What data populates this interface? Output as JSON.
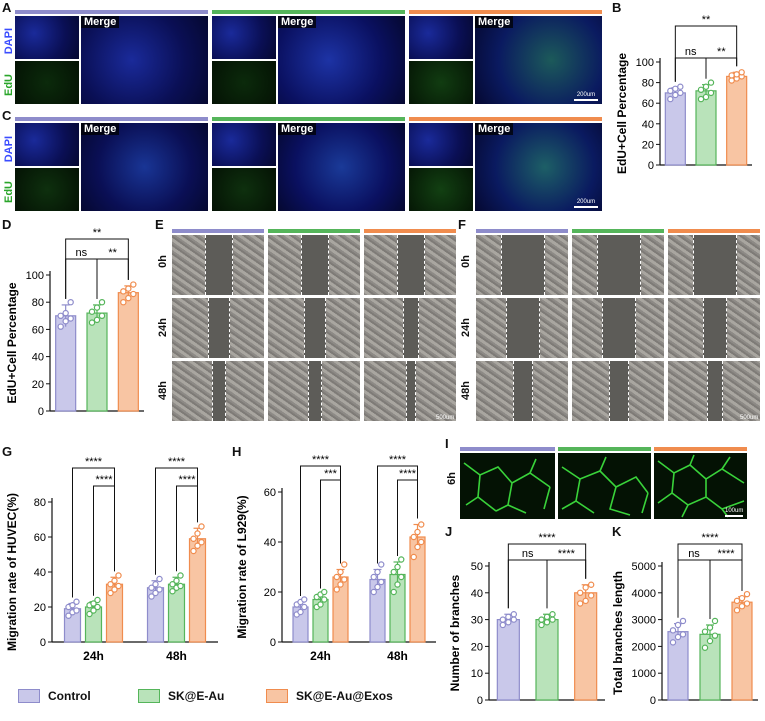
{
  "colors": {
    "control": "#8e8ccb",
    "skeau": "#55b55a",
    "exos": "#f08c4e",
    "controlFill": "#c9c8ea",
    "skeauFill": "#b9e3ba",
    "exosFill": "#f8c5a3"
  },
  "panels": {
    "A": "A",
    "B": "B",
    "C": "C",
    "D": "D",
    "E": "E",
    "F": "F",
    "G": "G",
    "H": "H",
    "I": "I",
    "J": "J",
    "K": "K"
  },
  "micro": {
    "merge": "Merge",
    "dapi": "DAPI",
    "edu": "EdU",
    "scale200": "200um",
    "scale500": "500um",
    "scale100": "100um",
    "t0": "0h",
    "t24": "24h",
    "t48": "48h",
    "t6": "6h"
  },
  "legend": [
    {
      "label": "Control"
    },
    {
      "label": "SK@E-Au"
    },
    {
      "label": "SK@E-Au@Exos"
    }
  ],
  "chart_data": [
    {
      "id": "B",
      "type": "bar",
      "ylabel": "EdU+Cell Percentage",
      "ylim": [
        0,
        100
      ],
      "yticks": [
        "0",
        "20",
        "40",
        "60",
        "80",
        "100"
      ],
      "categories": [
        "Control",
        "SK@E-Au",
        "SK@E-Au@Exos"
      ],
      "values": [
        70,
        72,
        86
      ],
      "errors": [
        5,
        6,
        4
      ],
      "points": [
        [
          64,
          68,
          70,
          72,
          74,
          76
        ],
        [
          64,
          66,
          70,
          73,
          76,
          80
        ],
        [
          82,
          84,
          86,
          87,
          88,
          90
        ]
      ],
      "significance": [
        {
          "label": "ns",
          "from": 0,
          "to": 1
        },
        {
          "label": "**",
          "from": 1,
          "to": 2
        },
        {
          "label": "**",
          "from": 0,
          "to": 2
        }
      ]
    },
    {
      "id": "D",
      "type": "bar",
      "ylabel": "EdU+Cell Percentage",
      "ylim": [
        0,
        100
      ],
      "yticks": [
        "0",
        "20",
        "40",
        "60",
        "80",
        "100"
      ],
      "categories": [
        "Control",
        "SK@E-Au",
        "SK@E-Au@Exos"
      ],
      "values": [
        70,
        72,
        87
      ],
      "errors": [
        8,
        6,
        5
      ],
      "points": [
        [
          62,
          66,
          68,
          70,
          72,
          80
        ],
        [
          65,
          67,
          70,
          73,
          76,
          80
        ],
        [
          80,
          83,
          86,
          88,
          90,
          93
        ]
      ],
      "significance": [
        {
          "label": "ns",
          "from": 0,
          "to": 1
        },
        {
          "label": "**",
          "from": 1,
          "to": 2
        },
        {
          "label": "**",
          "from": 0,
          "to": 2
        }
      ]
    },
    {
      "id": "G",
      "type": "bar",
      "ylabel": "Migration rate of HUVEC(%)",
      "ylim": [
        0,
        80
      ],
      "yticks": [
        "0",
        "20",
        "40",
        "60",
        "80"
      ],
      "categories": [
        "24h",
        "48h"
      ],
      "series": [
        {
          "name": "Control",
          "values": [
            19,
            31
          ],
          "errors": [
            3,
            4
          ],
          "points": [
            [
              15,
              17,
              18,
              20,
              21,
              23
            ],
            [
              26,
              28,
              30,
              31,
              33,
              36
            ]
          ]
        },
        {
          "name": "SK@E-Au",
          "values": [
            20,
            33
          ],
          "errors": [
            3,
            4
          ],
          "points": [
            [
              16,
              18,
              20,
              21,
              22,
              24
            ],
            [
              29,
              31,
              32,
              33,
              35,
              38
            ]
          ]
        },
        {
          "name": "SK@E-Au@Exos",
          "values": [
            33,
            59
          ],
          "errors": [
            4,
            6
          ],
          "points": [
            [
              28,
              30,
              32,
              33,
              35,
              38
            ],
            [
              52,
              55,
              57,
              59,
              62,
              66
            ]
          ]
        }
      ],
      "significance": [
        {
          "label": "****",
          "group": 0,
          "from": 1,
          "to": 2
        },
        {
          "label": "****",
          "group": 0,
          "from": 0,
          "to": 2
        },
        {
          "label": "****",
          "group": 1,
          "from": 1,
          "to": 2
        },
        {
          "label": "****",
          "group": 1,
          "from": 0,
          "to": 2
        }
      ]
    },
    {
      "id": "H",
      "type": "bar",
      "ylabel": "Migration rate of L929(%)",
      "ylim": [
        0,
        60
      ],
      "yticks": [
        "0",
        "20",
        "40",
        "60"
      ],
      "categories": [
        "24h",
        "48h"
      ],
      "series": [
        {
          "name": "Control",
          "values": [
            14,
            25
          ],
          "errors": [
            2,
            4
          ],
          "points": [
            [
              11,
              12,
              14,
              15,
              16,
              17
            ],
            [
              20,
              22,
              24,
              26,
              28,
              31
            ]
          ]
        },
        {
          "name": "SK@E-Au",
          "values": [
            17,
            27
          ],
          "errors": [
            2,
            5
          ],
          "points": [
            [
              14,
              15,
              17,
              18,
              19,
              20
            ],
            [
              20,
              23,
              26,
              28,
              30,
              33
            ]
          ]
        },
        {
          "name": "SK@E-Au@Exos",
          "values": [
            26,
            42
          ],
          "errors": [
            3,
            5
          ],
          "points": [
            [
              21,
              23,
              25,
              26,
              28,
              31
            ],
            [
              34,
              38,
              40,
              42,
              44,
              47
            ]
          ]
        }
      ],
      "significance": [
        {
          "label": "***",
          "group": 0,
          "from": 1,
          "to": 2
        },
        {
          "label": "****",
          "group": 0,
          "from": 0,
          "to": 2
        },
        {
          "label": "****",
          "group": 1,
          "from": 1,
          "to": 2
        },
        {
          "label": "****",
          "group": 1,
          "from": 0,
          "to": 2
        }
      ]
    },
    {
      "id": "J",
      "type": "bar",
      "ylabel": "Number of branches",
      "ylim": [
        0,
        50
      ],
      "yticks": [
        "0",
        "10",
        "20",
        "30",
        "40",
        "50"
      ],
      "categories": [
        "Control",
        "SK@E-Au",
        "SK@E-Au@Exos"
      ],
      "values": [
        30,
        30,
        40
      ],
      "errors": [
        2,
        2,
        3
      ],
      "points": [
        [
          28,
          29,
          30,
          30,
          31,
          32
        ],
        [
          28,
          29,
          30,
          30,
          31,
          32
        ],
        [
          36,
          37,
          39,
          40,
          42,
          43
        ]
      ],
      "significance": [
        {
          "label": "ns",
          "from": 0,
          "to": 1
        },
        {
          "label": "****",
          "from": 1,
          "to": 2
        },
        {
          "label": "****",
          "from": 0,
          "to": 2
        }
      ]
    },
    {
      "id": "K",
      "type": "bar",
      "ylabel": "Total branches length",
      "ylim": [
        0,
        5000
      ],
      "yticks": [
        "0",
        "1000",
        "2000",
        "3000",
        "4000",
        "5000"
      ],
      "categories": [
        "Control",
        "SK@E-Au",
        "SK@E-Au@Exos"
      ],
      "values": [
        2550,
        2450,
        3650
      ],
      "errors": [
        300,
        350,
        200
      ],
      "points": [
        [
          2150,
          2350,
          2450,
          2600,
          2800,
          2950
        ],
        [
          1950,
          2200,
          2400,
          2550,
          2700,
          2950
        ],
        [
          3350,
          3500,
          3600,
          3700,
          3800,
          3950
        ]
      ],
      "significance": [
        {
          "label": "ns",
          "from": 0,
          "to": 1
        },
        {
          "label": "****",
          "from": 1,
          "to": 2
        },
        {
          "label": "****",
          "from": 0,
          "to": 2
        }
      ]
    }
  ]
}
